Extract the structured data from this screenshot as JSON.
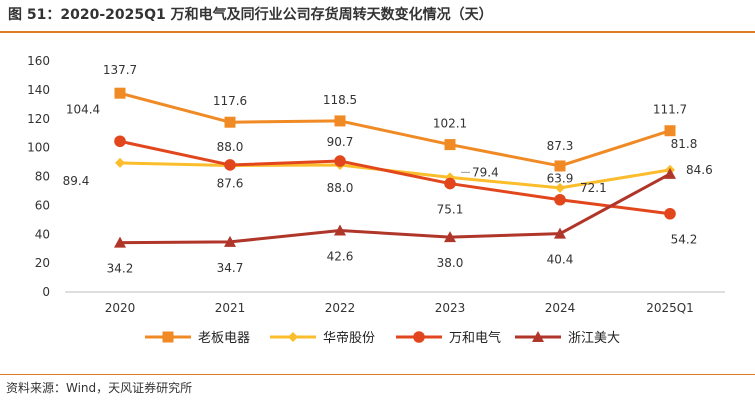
{
  "header": {
    "title": "图 51：2020-2025Q1 万和电气及同行业公司存货周转天数变化情况（天）"
  },
  "footer": {
    "source": "资料来源：Wind，天风证券研究所"
  },
  "colors": {
    "accent": "#e07a26"
  },
  "chart_data": {
    "type": "line",
    "categories": [
      "2020",
      "2021",
      "2022",
      "2023",
      "2024",
      "2025Q1"
    ],
    "ylim": [
      0,
      160
    ],
    "yticks": [
      0,
      20,
      40,
      60,
      80,
      100,
      120,
      140,
      160
    ],
    "grid": false,
    "legend_position": "bottom",
    "series": [
      {
        "name": "老板电器",
        "values": [
          137.7,
          117.6,
          118.5,
          102.1,
          87.3,
          111.7
        ],
        "color": "#f08a24",
        "marker": "square",
        "labels": [
          "137.7",
          "117.6",
          "118.5",
          "102.1",
          "87.3",
          "111.7"
        ]
      },
      {
        "name": "华帝股份",
        "values": [
          89.4,
          87.6,
          88.0,
          79.4,
          72.1,
          84.6
        ],
        "color": "#fbbd2b",
        "marker": "diamond",
        "labels": [
          "89.4",
          "87.6",
          "88.0",
          "79.4",
          "72.1",
          "84.6"
        ]
      },
      {
        "name": "万和电气",
        "values": [
          104.4,
          88.0,
          90.7,
          75.1,
          63.9,
          54.2
        ],
        "color": "#e2461d",
        "marker": "circle",
        "labels": [
          "104.4",
          "88.0",
          "90.7",
          "75.1",
          "63.9",
          "54.2"
        ]
      },
      {
        "name": "浙江美大",
        "values": [
          34.2,
          34.7,
          42.6,
          38.0,
          40.4,
          81.8
        ],
        "color": "#b0362a",
        "marker": "triangle",
        "labels": [
          "34.2",
          "34.7",
          "42.6",
          "38.0",
          "40.4",
          "81.8"
        ]
      }
    ]
  }
}
